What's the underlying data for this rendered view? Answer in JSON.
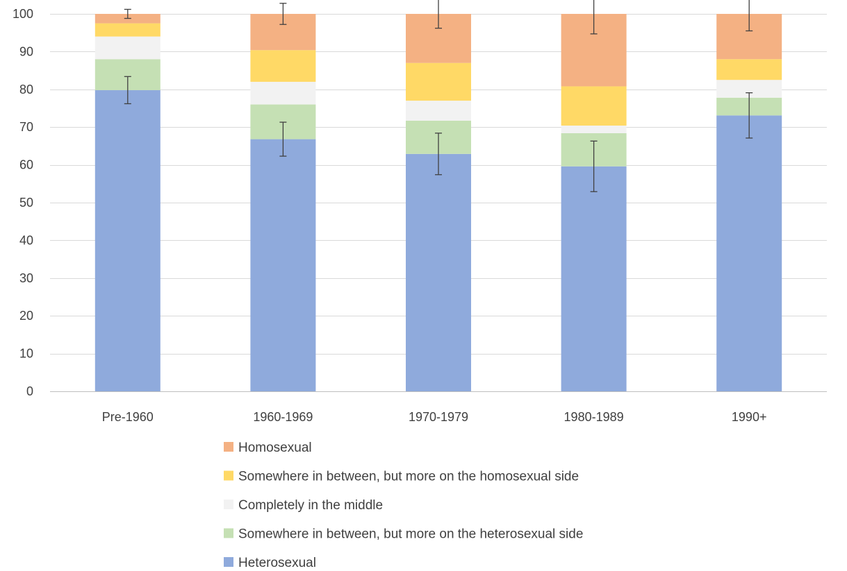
{
  "chart_data": {
    "type": "bar",
    "stacked": true,
    "categories": [
      "Pre-1960",
      "1960-1969",
      "1970-1979",
      "1980-1989",
      "1990+"
    ],
    "ylim": [
      0,
      100
    ],
    "yticks": [
      0,
      10,
      20,
      30,
      40,
      50,
      60,
      70,
      80,
      90,
      100
    ],
    "grid": true,
    "legend_position": "bottom",
    "series": [
      {
        "name": "Heterosexual",
        "color": "#8FAADC",
        "values": [
          79.8,
          66.8,
          62.9,
          59.6,
          73.1
        ],
        "error": [
          3.6,
          4.5,
          5.5,
          6.7,
          6.0
        ]
      },
      {
        "name": "Somewhere in between, but more on the heterosexual side",
        "color": "#C5E0B4",
        "values": [
          8.2,
          9.2,
          8.8,
          8.8,
          4.7
        ]
      },
      {
        "name": "Completely in the middle",
        "color": "#F2F2F2",
        "values": [
          6.0,
          6.0,
          5.3,
          2.0,
          4.7
        ]
      },
      {
        "name": "Somewhere in between, but more on the homosexual side",
        "color": "#FFD966",
        "values": [
          3.5,
          8.4,
          10.0,
          10.4,
          5.5
        ]
      },
      {
        "name": "Homosexual",
        "color": "#F4B183",
        "values": [
          2.5,
          9.6,
          13.0,
          19.2,
          12.0
        ],
        "error": [
          1.2,
          2.8,
          3.8,
          5.3,
          4.5
        ]
      }
    ],
    "legend_order": [
      4,
      3,
      2,
      1,
      0
    ]
  }
}
